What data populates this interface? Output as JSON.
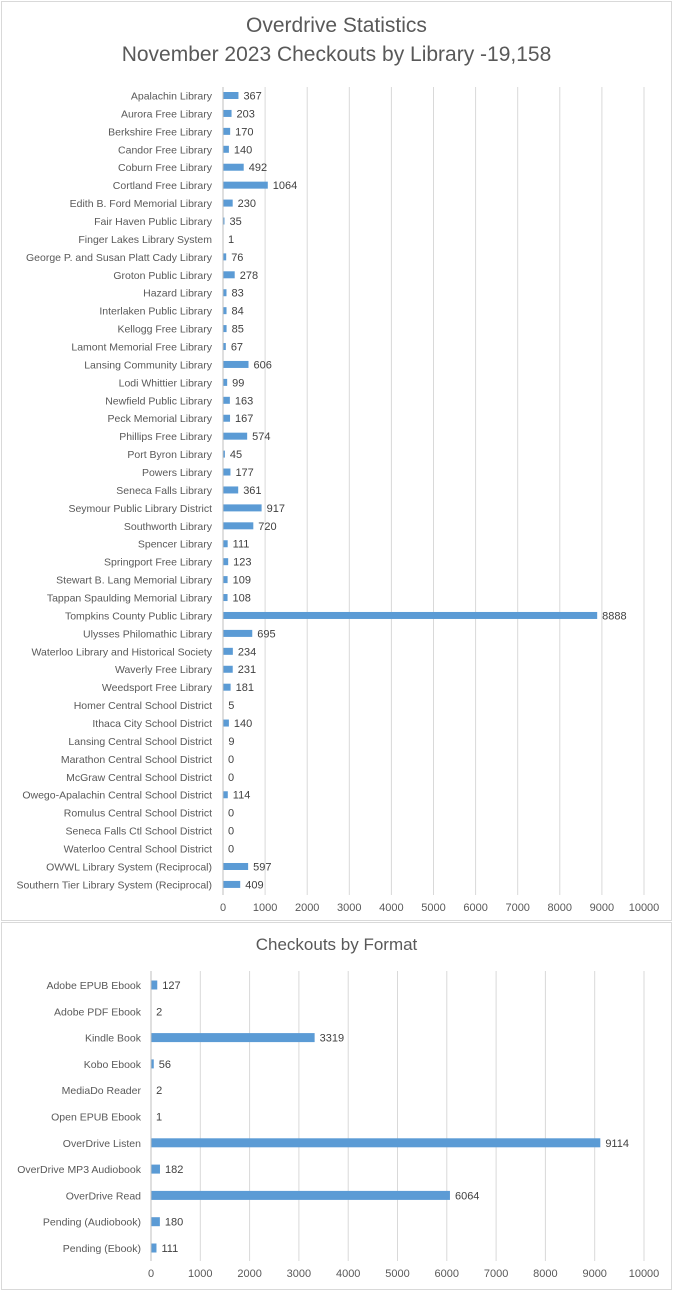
{
  "chart_data": [
    {
      "type": "bar",
      "orientation": "horizontal",
      "title": "Overdrive Statistics",
      "subtitle": "November 2023 Checkouts by Library -19,158",
      "categories": [
        "Apalachin Library",
        "Aurora Free Library",
        "Berkshire Free Library",
        "Candor Free Library",
        "Coburn Free Library",
        "Cortland Free Library",
        "Edith B. Ford Memorial Library",
        "Fair Haven Public Library",
        "Finger Lakes Library System",
        "George P. and Susan Platt Cady Library",
        "Groton Public Library",
        "Hazard Library",
        "Interlaken Public Library",
        "Kellogg Free Library",
        "Lamont Memorial Free Library",
        "Lansing Community Library",
        "Lodi Whittier Library",
        "Newfield Public Library",
        "Peck Memorial Library",
        "Phillips Free Library",
        "Port Byron Library",
        "Powers Library",
        "Seneca Falls Library",
        "Seymour Public Library District",
        "Southworth Library",
        "Spencer Library",
        "Springport Free Library",
        "Stewart B. Lang Memorial Library",
        "Tappan Spaulding Memorial Library",
        "Tompkins County Public Library",
        "Ulysses Philomathic Library",
        "Waterloo Library and Historical Society",
        "Waverly Free Library",
        "Weedsport Free Library",
        "Homer Central School District",
        "Ithaca City School District",
        "Lansing Central School District",
        "Marathon Central School District",
        "McGraw Central School District",
        "Owego-Apalachin Central School District",
        "Romulus Central School District",
        "Seneca Falls Ctl School District",
        "Waterloo Central School District",
        "OWWL Library System (Reciprocal)",
        "Southern Tier Library System (Reciprocal)"
      ],
      "values": [
        367,
        203,
        170,
        140,
        492,
        1064,
        230,
        35,
        1,
        76,
        278,
        83,
        84,
        85,
        67,
        606,
        99,
        163,
        167,
        574,
        45,
        177,
        361,
        917,
        720,
        111,
        123,
        109,
        108,
        8888,
        695,
        234,
        231,
        181,
        5,
        140,
        9,
        0,
        0,
        114,
        0,
        0,
        0,
        597,
        409
      ],
      "xlim": [
        0,
        10000
      ],
      "xticks": [
        0,
        1000,
        2000,
        3000,
        4000,
        5000,
        6000,
        7000,
        8000,
        9000,
        10000
      ],
      "data_labels": true,
      "grid": "vertical",
      "legend": "none",
      "bar_color": "#5b9bd5"
    },
    {
      "type": "bar",
      "orientation": "horizontal",
      "title": "Checkouts by Format",
      "categories": [
        "Adobe EPUB Ebook",
        "Adobe PDF Ebook",
        "Kindle Book",
        "Kobo Ebook",
        "MediaDo Reader",
        "Open EPUB Ebook",
        "OverDrive Listen",
        "OverDrive MP3 Audiobook",
        "OverDrive Read",
        "Pending (Audiobook)",
        "Pending (Ebook)"
      ],
      "values": [
        127,
        2,
        3319,
        56,
        2,
        1,
        9114,
        182,
        6064,
        180,
        111
      ],
      "xlim": [
        0,
        10000
      ],
      "xticks": [
        0,
        1000,
        2000,
        3000,
        4000,
        5000,
        6000,
        7000,
        8000,
        9000,
        10000
      ],
      "data_labels": true,
      "grid": "vertical",
      "legend": "none",
      "bar_color": "#5b9bd5"
    }
  ]
}
